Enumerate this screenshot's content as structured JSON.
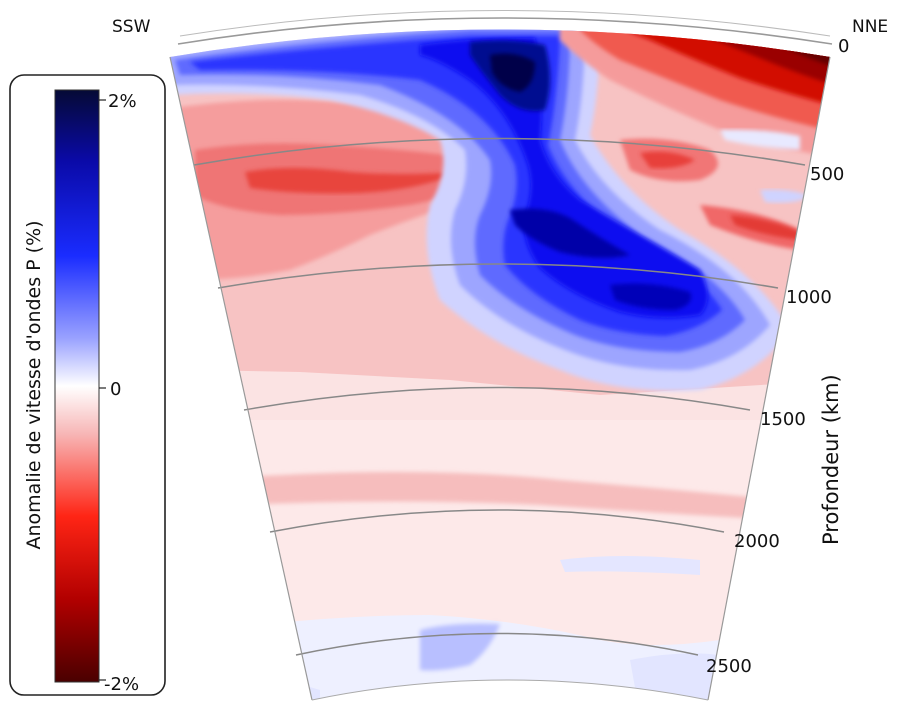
{
  "directions": {
    "left": "SSW",
    "right": "NNE"
  },
  "colorbar": {
    "label": "Anomalie de vitesse d'ondes P (%)",
    "tick_top": "2%",
    "tick_mid": "0",
    "tick_bottom": "-2%"
  },
  "depth_axis": {
    "label": "Profondeur (km)",
    "ticks": [
      "0",
      "500",
      "1000",
      "1500",
      "2000",
      "2500"
    ]
  },
  "colors": {
    "strong_blue": "#00007a",
    "blue": "#0a12ff",
    "light_blue": "#cdd0ff",
    "white": "#ffffff",
    "light_red": "#f6b8b8",
    "red": "#ff2a1a",
    "dark_red": "#6b0000"
  }
}
